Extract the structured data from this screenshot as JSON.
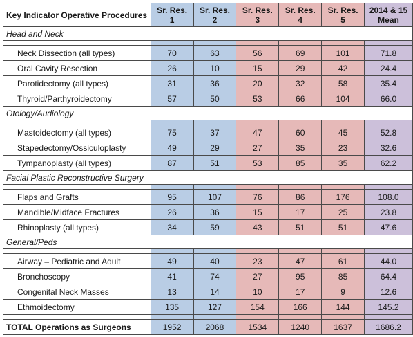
{
  "headers": {
    "col0": "Key Indicator Operative Procedures",
    "res1": "Sr. Res. 1",
    "res2": "Sr. Res. 2",
    "res3": "Sr. Res. 3",
    "res4": "Sr. Res. 4",
    "res5": "Sr. Res. 5",
    "mean": "2014 & 15 Mean"
  },
  "sections": [
    {
      "title": "Head and Neck",
      "rows": [
        {
          "name": "Neck Dissection (all types)",
          "values": [
            "70",
            "63",
            "56",
            "69",
            "101",
            "71.8"
          ]
        },
        {
          "name": "Oral Cavity Resection",
          "values": [
            "26",
            "10",
            "15",
            "29",
            "42",
            "24.4"
          ]
        },
        {
          "name": "Parotidectomy (all types)",
          "values": [
            "31",
            "36",
            "20",
            "32",
            "58",
            "35.4"
          ]
        },
        {
          "name": "Thyroid/Parthyroidectomy",
          "values": [
            "57",
            "50",
            "53",
            "66",
            "104",
            "66.0"
          ]
        }
      ]
    },
    {
      "title": "Otology/Audiology",
      "rows": [
        {
          "name": "Mastoidectomy (all types)",
          "values": [
            "75",
            "37",
            "47",
            "60",
            "45",
            "52.8"
          ]
        },
        {
          "name": "Stapedectomy/Ossiculoplasty",
          "values": [
            "49",
            "29",
            "27",
            "35",
            "23",
            "32.6"
          ]
        },
        {
          "name": "Tympanoplasty (all types)",
          "values": [
            "87",
            "51",
            "53",
            "85",
            "35",
            "62.2"
          ]
        }
      ]
    },
    {
      "title": "Facial Plastic Reconstructive Surgery",
      "rows": [
        {
          "name": "Flaps and Grafts",
          "values": [
            "95",
            "107",
            "76",
            "86",
            "176",
            "108.0"
          ]
        },
        {
          "name": "Mandible/Midface Fractures",
          "values": [
            "26",
            "36",
            "15",
            "17",
            "25",
            "23.8"
          ]
        },
        {
          "name": "Rhinoplasty (all types)",
          "values": [
            "34",
            "59",
            "43",
            "51",
            "51",
            "47.6"
          ]
        }
      ]
    },
    {
      "title": "General/Peds",
      "rows": [
        {
          "name": "Airway – Pediatric and Adult",
          "values": [
            "49",
            "40",
            "23",
            "47",
            "61",
            "44.0"
          ]
        },
        {
          "name": "Bronchoscopy",
          "values": [
            "41",
            "74",
            "27",
            "95",
            "85",
            "64.4"
          ]
        },
        {
          "name": "Congenital Neck Masses",
          "values": [
            "13",
            "14",
            "10",
            "17",
            "9",
            "12.6"
          ]
        },
        {
          "name": "Ethmoidectomy",
          "values": [
            "135",
            "127",
            "154",
            "166",
            "144",
            "145.2"
          ]
        }
      ]
    }
  ],
  "total": {
    "name": "TOTAL Operations as Surgeons",
    "values": [
      "1952",
      "2068",
      "1534",
      "1240",
      "1637",
      "1686.2"
    ]
  },
  "colors": {
    "senior_1_2": "#b9cde5",
    "senior_3_5": "#e6b9b8",
    "mean": "#ccc0da"
  }
}
